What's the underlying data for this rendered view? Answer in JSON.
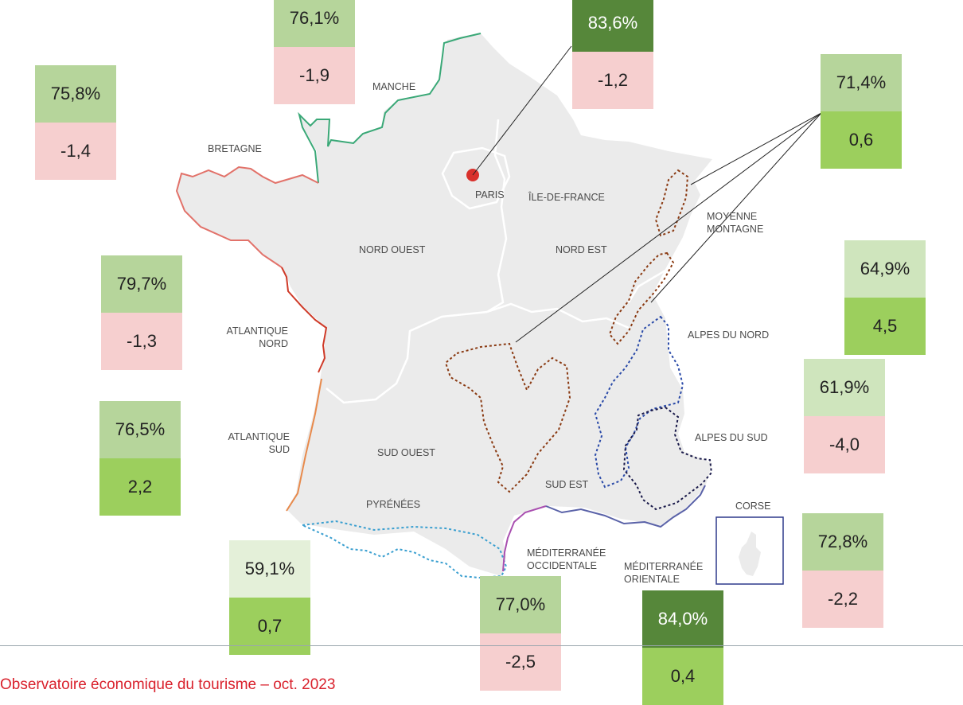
{
  "regions": {
    "manche": "MANCHE",
    "bretagne": "BRETAGNE",
    "paris": "PARIS",
    "ile_de_france": "ÎLE-DE-FRANCE",
    "nord_ouest": "NORD OUEST",
    "nord_est": "NORD EST",
    "moyenne_montagne": "MOYENNE\nMONTAGNE",
    "atlantique_nord": "ATLANTIQUE\nNORD",
    "alpes_du_nord": "ALPES DU NORD",
    "alpes_du_sud": "ALPES DU SUD",
    "atlantique_sud": "ATLANTIQUE\nSUD",
    "sud_ouest": "SUD OUEST",
    "sud_est": "SUD EST",
    "pyrenees": "PYRÉNÉES",
    "corse": "CORSE",
    "mediterranee_occidentale": "MÉDITERRANÉE\nOCCIDENTALE",
    "mediterranee_orientale": "MÉDITERRANÉE\nORIENTALE"
  },
  "stats": {
    "manche": {
      "rate": "76,1%",
      "delta": "-1,9"
    },
    "paris": {
      "rate": "83,6%",
      "delta": "-1,2"
    },
    "bretagne": {
      "rate": "75,8%",
      "delta": "-1,4"
    },
    "moyenne_montagne": {
      "rate": "71,4%",
      "delta": "0,6"
    },
    "atlantique_nord": {
      "rate": "79,7%",
      "delta": "-1,3"
    },
    "alpes_du_nord": {
      "rate": "64,9%",
      "delta": "4,5"
    },
    "alpes_du_sud": {
      "rate": "61,9%",
      "delta": "-4,0"
    },
    "atlantique_sud": {
      "rate": "76,5%",
      "delta": "2,2"
    },
    "corse": {
      "rate": "72,8%",
      "delta": "-2,2"
    },
    "pyrenees": {
      "rate": "59,1%",
      "delta": "0,7"
    },
    "mediterranee_occidentale": {
      "rate": "77,0%",
      "delta": "-2,5"
    },
    "mediterranee_orientale": {
      "rate": "84,0%",
      "delta": "0,4"
    }
  },
  "colors": {
    "land": "#ebebeb",
    "border": "#ffffff",
    "paris_dot": "#d9312c",
    "manche_coast": "#3aa877",
    "bretagne_coast": "#e2726a",
    "atlantique_nord_coast": "#cf3a28",
    "atlantique_sud_coast": "#e88a4c",
    "pyrenees_line": "#3a9fd0",
    "mediterranee_occidentale_coast": "#a94fb0",
    "mediterranee_orientale_coast": "#5a62a8",
    "mountain_line": "#8a3a12",
    "alpes_nord_line": "#2a4aa8",
    "alpes_sud_line": "#1a1a4a",
    "positive_delta": "#9ccf5d",
    "negative_delta": "#f6cfcf",
    "footer_text": "#d9212c"
  },
  "footer": "Observatoire économique du tourisme – oct. 2023"
}
